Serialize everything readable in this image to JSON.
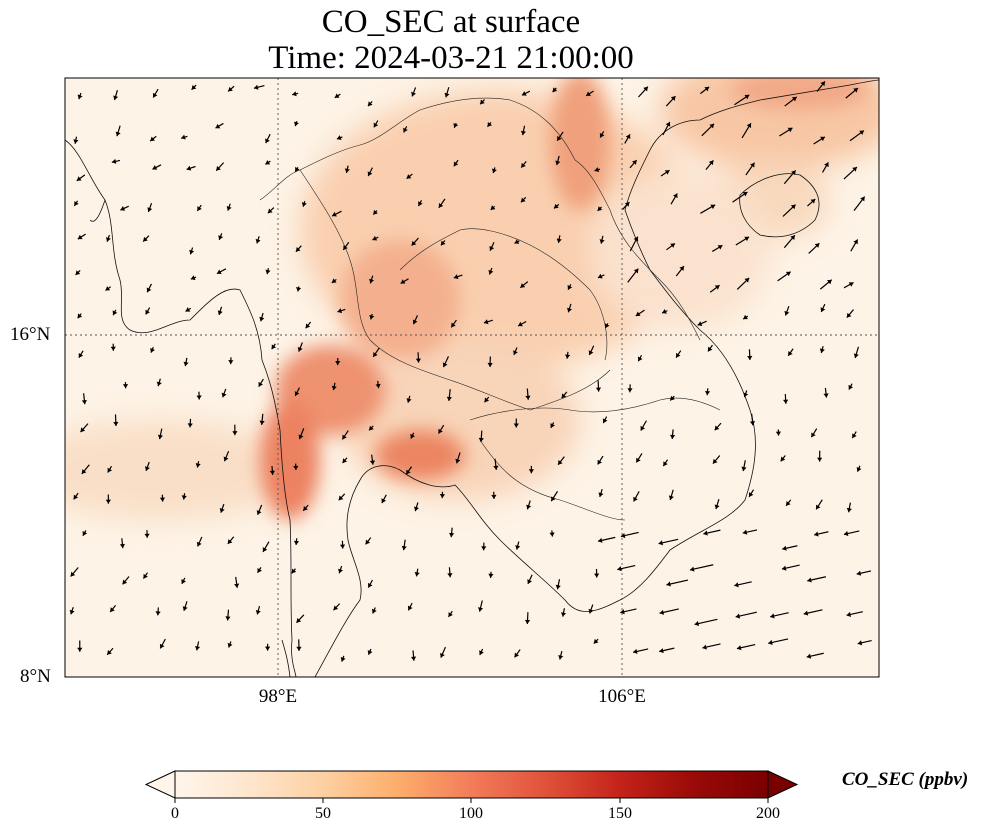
{
  "title_line1": "CO_SEC at surface",
  "title_line2": "Time: 2024-03-21 21:00:00",
  "map": {
    "lon_range": [
      93.0,
      112.0
    ],
    "lat_range": [
      8.0,
      22.0
    ],
    "lat_ticks": [
      {
        "value": 16,
        "label": "16°N"
      },
      {
        "value": 8,
        "label": "8°N"
      }
    ],
    "lon_ticks": [
      {
        "value": 98,
        "label": "98°E"
      },
      {
        "value": 106,
        "label": "106°E"
      }
    ],
    "gridlines": "dotted",
    "background_color": "#fdf2e4",
    "plume_color": "#f4a27a",
    "plume_core_color": "#ec7a52",
    "vectors": "wind arrows (black)"
  },
  "colorbar": {
    "label": "CO_SEC (ppbv)",
    "ticks": [
      "0",
      "50",
      "100",
      "150",
      "200"
    ],
    "min": 0,
    "max": 200,
    "extend": "both",
    "colormap": [
      "#fff5eb",
      "#fee6ce",
      "#fdd0a2",
      "#fdae6b",
      "#fd8d3c",
      "#f16913",
      "#d94801",
      "#a63603",
      "#7f2704"
    ]
  }
}
